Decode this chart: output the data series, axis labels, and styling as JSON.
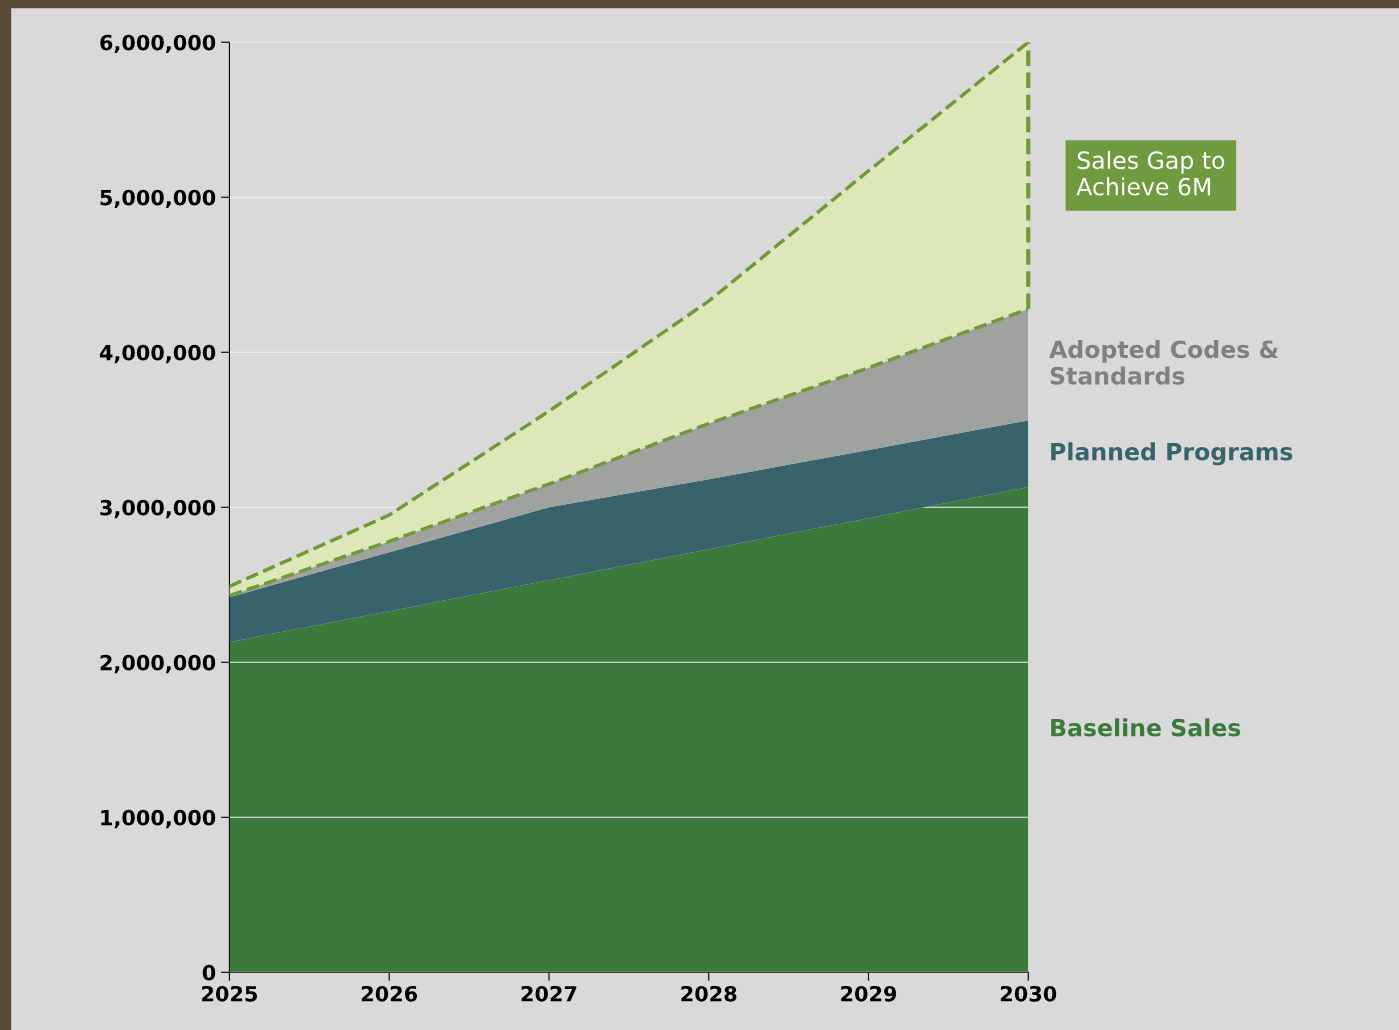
{
  "chart_data": {
    "type": "area",
    "stacked": true,
    "x": [
      2025,
      2026,
      2027,
      2028,
      2029,
      2030
    ],
    "series": [
      {
        "name": "Baseline Sales",
        "color": "#3b7a3c",
        "values": [
          2130000,
          2330000,
          2530000,
          2730000,
          2930000,
          3130000
        ]
      },
      {
        "name": "Planned Programs",
        "color": "#39636b",
        "values": [
          290000,
          380000,
          470000,
          450000,
          440000,
          430000
        ]
      },
      {
        "name": "Adopted Codes & Standards",
        "color": "#a0a2a0",
        "values": [
          10000,
          70000,
          150000,
          360000,
          530000,
          720000
        ]
      },
      {
        "name": "Sales Gap to Achieve 6M",
        "color": "#dce8b8",
        "line_style": "dashed",
        "values": [
          60000,
          170000,
          470000,
          790000,
          1270000,
          1720000
        ]
      }
    ],
    "xlim": [
      2025,
      2030
    ],
    "xticks": [
      2025,
      2026,
      2027,
      2028,
      2029,
      2030
    ],
    "ylim": [
      0,
      6000000
    ],
    "yticks": [
      {
        "value": 0,
        "label": "0"
      },
      {
        "value": 1000000,
        "label": "1,000,000"
      },
      {
        "value": 2000000,
        "label": "2,000,000"
      },
      {
        "value": 3000000,
        "label": "3,000,000"
      },
      {
        "value": 4000000,
        "label": "4,000,000"
      },
      {
        "value": 5000000,
        "label": "5,000,000"
      },
      {
        "value": 6000000,
        "label": "6,000,000"
      }
    ],
    "grid": "y",
    "legend": false
  }
}
